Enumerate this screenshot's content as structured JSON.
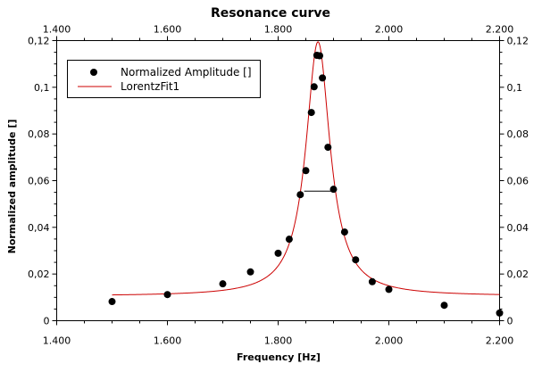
{
  "chart_data": {
    "type": "scatter",
    "title": "Resonance curve",
    "xlabel": "Frequency [Hz]",
    "ylabel": "Normalized amplitude []",
    "xlim": [
      1400,
      2200
    ],
    "ylim": [
      0,
      0.12
    ],
    "x_ticks": [
      1400,
      1600,
      1800,
      2000,
      2200
    ],
    "x_tick_labels": [
      "1.400",
      "1.600",
      "1.800",
      "2.000",
      "2.200"
    ],
    "y_ticks": [
      0,
      0.02,
      0.04,
      0.06,
      0.08,
      0.1,
      0.12
    ],
    "y_tick_labels": [
      "0",
      "0,02",
      "0,04",
      "0,06",
      "0,08",
      "0,1",
      "0,12"
    ],
    "grid": false,
    "legend_position": "top-left",
    "series": [
      {
        "name": "Normalized Amplitude []",
        "kind": "scatter",
        "color": "#000000",
        "x": [
          1500,
          1600,
          1700,
          1750,
          1800,
          1820,
          1840,
          1850,
          1860,
          1865,
          1870,
          1875,
          1880,
          1890,
          1900,
          1920,
          1940,
          1970,
          2000,
          2100,
          2200
        ],
        "y": [
          0.0082,
          0.0112,
          0.0158,
          0.0209,
          0.0289,
          0.0349,
          0.054,
          0.0643,
          0.0892,
          0.1002,
          0.1137,
          0.1135,
          0.104,
          0.0743,
          0.0563,
          0.038,
          0.0261,
          0.0167,
          0.0134,
          0.0066,
          0.0033
        ]
      },
      {
        "name": "LorentzFit1",
        "kind": "line",
        "color": "#cc0000",
        "fit": {
          "x0": 1872,
          "fwhm": 53,
          "amplitude": 0.109,
          "offset": 0.0105,
          "x_range": [
            1500,
            2200
          ]
        }
      }
    ],
    "annotations": [
      {
        "type": "fwhm-marker",
        "x_range": [
          1847,
          1898
        ],
        "y": 0.0555
      }
    ]
  }
}
